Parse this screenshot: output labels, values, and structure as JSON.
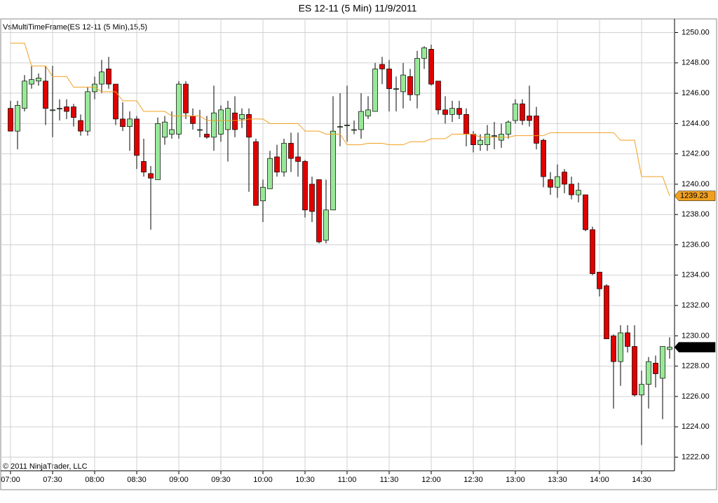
{
  "chart_data": {
    "type": "candlestick",
    "title": "ES 12-11 (5 Min)  11/9/2011",
    "indicator_label": "VsMultiTimeFrame(ES 12-11 (5 Min),15,5)",
    "copyright": "© 2011 NinjaTrader, LLC",
    "categories": [
      "07:00",
      null,
      null,
      null,
      null,
      null,
      "07:30",
      null,
      null,
      null,
      null,
      null,
      "08:00",
      null,
      null,
      null,
      null,
      null,
      "08:30",
      null,
      null,
      null,
      null,
      null,
      "09:00",
      null,
      null,
      null,
      null,
      null,
      "09:30",
      null,
      null,
      null,
      null,
      null,
      "10:00",
      null,
      null,
      null,
      null,
      null,
      "10:30",
      null,
      null,
      null,
      null,
      null,
      "11:00",
      null,
      null,
      null,
      null,
      null,
      "11:30",
      null,
      null,
      null,
      null,
      null,
      "12:00",
      null,
      null,
      null,
      null,
      null,
      "12:30",
      null,
      null,
      null,
      null,
      null,
      "13:00",
      null,
      null,
      null,
      null,
      null,
      "13:30",
      null,
      null,
      null,
      null,
      null,
      "14:00",
      null,
      null,
      null,
      null,
      null,
      "14:30",
      null,
      null,
      null,
      null
    ],
    "ylim": [
      1221.1,
      1250.9
    ],
    "yticks": [
      {
        "value": 1222,
        "label": "1222.00"
      },
      {
        "value": 1224,
        "label": "1224.00"
      },
      {
        "value": 1226,
        "label": "1226.00"
      },
      {
        "value": 1228,
        "label": "1228.00"
      },
      {
        "value": 1230,
        "label": "1230.00"
      },
      {
        "value": 1232,
        "label": "1232.00"
      },
      {
        "value": 1234,
        "label": "1234.00"
      },
      {
        "value": 1236,
        "label": "1236.00"
      },
      {
        "value": 1238,
        "label": "1238.00"
      },
      {
        "value": 1240,
        "label": "1240.00"
      },
      {
        "value": 1242,
        "label": "1242.00"
      },
      {
        "value": 1244,
        "label": "1244.00"
      },
      {
        "value": 1246,
        "label": "1246.00"
      },
      {
        "value": 1248,
        "label": "1248.00"
      },
      {
        "value": 1250,
        "label": "1250.00"
      }
    ],
    "grid": true,
    "candles": {
      "up_color": "#98e898",
      "down_color": "#e00000",
      "last_label": "1229.25",
      "open": [
        1245.0,
        1243.5,
        1245.0,
        1246.6,
        1246.8,
        1246.8,
        1244.9,
        1245.0,
        1245.1,
        1245.1,
        1244.2,
        1243.5,
        1246.1,
        1246.6,
        1247.6,
        1246.6,
        1244.3,
        1243.8,
        1244.3,
        1241.5,
        1240.7,
        1240.3,
        1243.1,
        1243.3,
        1243.3,
        1246.6,
        1244.5,
        1243.6,
        1243.3,
        1243.1,
        1243.3,
        1243.6,
        1244.7,
        1244.3,
        1244.6,
        1242.8,
        1238.9,
        1239.7,
        1241.8,
        1240.8,
        1242.7,
        1241.8,
        1241.5,
        1240.0,
        1240.3,
        1236.3,
        1238.3,
        1243.8,
        1243.9,
        1243.6,
        1243.6,
        1244.5,
        1244.8,
        1247.9,
        1247.6,
        1246.3,
        1246.1,
        1247.1,
        1245.9,
        1248.3,
        1248.9,
        1246.8,
        1244.9,
        1244.6,
        1245.0,
        1244.6,
        1243.3,
        1242.6,
        1242.6,
        1243.2,
        1242.9,
        1243.3,
        1244.2,
        1245.3,
        1244.5,
        1244.5,
        1242.9,
        1240.3,
        1239.8,
        1240.8,
        1240.0,
        1239.3,
        1239.3,
        1237.0,
        1234.2,
        1233.3,
        1230.0,
        1228.3,
        1230.2,
        1229.3,
        1226.1,
        1226.8,
        1228.2,
        1227.2,
        1229.1
      ],
      "high": [
        1245.5,
        1245.5,
        1247.2,
        1247.8,
        1247.3,
        1247.8,
        1247.8,
        1245.6,
        1245.6,
        1245.3,
        1244.6,
        1246.4,
        1247.1,
        1248.2,
        1248.4,
        1246.6,
        1245.4,
        1244.8,
        1244.5,
        1243.0,
        1241.2,
        1244.4,
        1244.5,
        1244.8,
        1246.8,
        1246.8,
        1245.0,
        1244.9,
        1244.5,
        1246.5,
        1245.2,
        1245.5,
        1245.8,
        1245.0,
        1245.0,
        1243.0,
        1240.3,
        1242.2,
        1242.6,
        1243.0,
        1243.4,
        1243.4,
        1241.6,
        1240.5,
        1240.3,
        1240.3,
        1245.8,
        1246.0,
        1246.5,
        1244.2,
        1246.0,
        1245.8,
        1248.0,
        1248.4,
        1248.2,
        1247.1,
        1248.0,
        1247.6,
        1248.8,
        1249.1,
        1249.2,
        1246.8,
        1245.8,
        1245.5,
        1245.5,
        1245.0,
        1243.5,
        1243.3,
        1243.9,
        1244.1,
        1244.0,
        1244.2,
        1245.6,
        1245.6,
        1246.5,
        1245.1,
        1243.0,
        1240.8,
        1241.3,
        1241.0,
        1240.5,
        1240.1,
        1239.3,
        1237.2,
        1234.2,
        1233.4,
        1230.1,
        1230.7,
        1230.7,
        1230.7,
        1227.7,
        1228.6,
        1228.7,
        1229.3,
        1229.9
      ],
      "low": [
        1243.5,
        1242.3,
        1244.8,
        1246.3,
        1246.5,
        1243.9,
        1243.1,
        1244.2,
        1244.3,
        1243.8,
        1243.2,
        1243.2,
        1245.6,
        1246.0,
        1246.3,
        1243.9,
        1243.5,
        1242.2,
        1241.0,
        1240.5,
        1237.0,
        1240.3,
        1242.6,
        1243.0,
        1243.0,
        1244.3,
        1243.6,
        1243.1,
        1243.0,
        1242.2,
        1242.8,
        1241.5,
        1243.1,
        1243.7,
        1239.5,
        1238.6,
        1237.5,
        1239.7,
        1240.5,
        1240.5,
        1240.8,
        1240.5,
        1237.8,
        1237.5,
        1236.1,
        1236.1,
        1238.3,
        1242.5,
        1242.8,
        1243.3,
        1243.0,
        1244.3,
        1244.8,
        1246.6,
        1244.8,
        1244.8,
        1245.0,
        1245.5,
        1245.0,
        1247.6,
        1246.5,
        1244.6,
        1244.0,
        1244.1,
        1244.3,
        1242.5,
        1242.1,
        1242.2,
        1242.2,
        1242.3,
        1242.4,
        1243.0,
        1244.0,
        1243.9,
        1243.8,
        1242.3,
        1239.8,
        1239.3,
        1239.1,
        1239.4,
        1239.0,
        1238.8,
        1236.9,
        1234.0,
        1232.6,
        1229.8,
        1225.2,
        1226.7,
        1228.9,
        1226.0,
        1222.8,
        1225.2,
        1226.6,
        1224.5,
        1228.5
      ],
      "close": [
        1243.5,
        1245.2,
        1246.8,
        1246.9,
        1247.0,
        1245.0,
        1244.9,
        1245.0,
        1244.8,
        1244.4,
        1243.5,
        1246.1,
        1246.6,
        1247.4,
        1246.6,
        1244.3,
        1243.8,
        1244.3,
        1241.9,
        1240.8,
        1240.4,
        1244.0,
        1244.1,
        1243.6,
        1246.6,
        1244.7,
        1244.0,
        1243.6,
        1243.1,
        1244.7,
        1244.9,
        1245.0,
        1243.6,
        1244.6,
        1243.1,
        1238.6,
        1239.8,
        1241.7,
        1240.8,
        1242.7,
        1241.7,
        1241.5,
        1238.3,
        1238.2,
        1236.2,
        1238.3,
        1243.5,
        1243.8,
        1243.9,
        1243.6,
        1244.8,
        1244.9,
        1247.6,
        1247.6,
        1246.3,
        1246.3,
        1247.2,
        1245.9,
        1248.3,
        1249.0,
        1246.6,
        1244.9,
        1244.6,
        1245.0,
        1244.6,
        1243.3,
        1242.6,
        1242.9,
        1243.3,
        1243.2,
        1243.3,
        1244.1,
        1245.3,
        1244.2,
        1244.2,
        1242.7,
        1240.5,
        1239.8,
        1240.5,
        1240.0,
        1239.3,
        1239.6,
        1237.0,
        1234.1,
        1233.1,
        1229.8,
        1228.3,
        1230.2,
        1229.3,
        1226.1,
        1226.8,
        1228.3,
        1227.5,
        1229.3,
        1229.25
      ]
    },
    "line": {
      "color": "#f0a020",
      "last_label": "1239.23",
      "values": [
        1249.3,
        1249.3,
        1249.3,
        1247.8,
        1247.8,
        1247.8,
        1247.1,
        1247.1,
        1247.1,
        1246.4,
        1246.4,
        1246.4,
        1246.4,
        1246.1,
        1246.1,
        1246.1,
        1245.5,
        1245.5,
        1245.5,
        1244.8,
        1244.8,
        1244.8,
        1244.8,
        1244.5,
        1244.5,
        1244.5,
        1244.5,
        1244.5,
        1244.2,
        1244.2,
        1244.2,
        1244.2,
        1244.2,
        1244.2,
        1244.3,
        1244.3,
        1244.3,
        1244.0,
        1244.0,
        1244.0,
        1244.0,
        1244.0,
        1243.5,
        1243.5,
        1243.5,
        1243.3,
        1243.3,
        1243.3,
        1242.6,
        1242.6,
        1242.6,
        1242.7,
        1242.7,
        1242.7,
        1242.6,
        1242.6,
        1242.6,
        1242.8,
        1242.8,
        1242.8,
        1243.0,
        1243.0,
        1243.0,
        1243.3,
        1243.3,
        1243.3,
        1243.3,
        1243.1,
        1243.1,
        1243.1,
        1243.1,
        1243.1,
        1243.2,
        1243.2,
        1243.2,
        1243.2,
        1243.2,
        1243.4,
        1243.4,
        1243.4,
        1243.4,
        1243.4,
        1243.4,
        1243.4,
        1243.4,
        1243.4,
        1243.4,
        1242.9,
        1242.9,
        1242.9,
        1240.5,
        1240.5,
        1240.5,
        1240.5,
        1239.23
      ]
    }
  }
}
